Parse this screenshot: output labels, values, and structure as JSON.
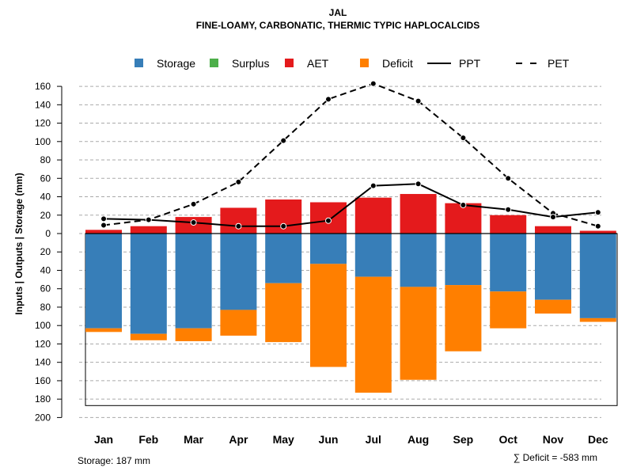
{
  "chart_data": {
    "type": "bar",
    "title": "JAL",
    "subtitle": "FINE-LOAMY, CARBONATIC, THERMIC TYPIC HAPLOCALCIDS",
    "ylabel": "Inputs | Outputs | Storage     (mm)",
    "ylim": [
      -200,
      170
    ],
    "yticks": [
      160,
      140,
      120,
      100,
      80,
      60,
      40,
      20,
      0,
      -20,
      -40,
      -60,
      -80,
      -100,
      -120,
      -140,
      -160,
      -180,
      -200
    ],
    "ytick_labels": [
      "160",
      "140",
      "120",
      "100",
      "80",
      "60",
      "40",
      "20",
      "0",
      "20",
      "40",
      "60",
      "80",
      "100",
      "120",
      "140",
      "160",
      "180",
      "200"
    ],
    "grid": true,
    "categories": [
      "Jan",
      "Feb",
      "Mar",
      "Apr",
      "May",
      "Jun",
      "Jul",
      "Aug",
      "Sep",
      "Oct",
      "Nov",
      "Dec"
    ],
    "legend": {
      "position": "top",
      "entries": [
        {
          "name": "Storage",
          "color": "#377EB8",
          "kind": "box"
        },
        {
          "name": "Surplus",
          "color": "#4DAF4A",
          "kind": "box"
        },
        {
          "name": "AET",
          "color": "#E41A1C",
          "kind": "box"
        },
        {
          "name": "Deficit",
          "color": "#FF7F00",
          "kind": "box"
        },
        {
          "name": "PPT",
          "color": "#000000",
          "kind": "solid"
        },
        {
          "name": "PET",
          "color": "#000000",
          "kind": "dashed"
        }
      ]
    },
    "series": [
      {
        "name": "AET",
        "values": [
          4,
          8,
          18,
          28,
          37,
          34,
          39,
          43,
          33,
          20,
          8,
          3
        ]
      },
      {
        "name": "Storage",
        "values": [
          103,
          109,
          103,
          83,
          54,
          33,
          47,
          58,
          56,
          63,
          72,
          92
        ]
      },
      {
        "name": "Deficit",
        "values": [
          4,
          7,
          14,
          28,
          64,
          112,
          126,
          101,
          72,
          40,
          15,
          4
        ]
      },
      {
        "name": "Surplus",
        "values": [
          0,
          0,
          0,
          0,
          0,
          0,
          0,
          0,
          0,
          0,
          0,
          0
        ]
      },
      {
        "name": "PPT",
        "values": [
          16,
          15,
          12,
          8,
          8,
          14,
          52,
          54,
          31,
          26,
          18,
          23
        ]
      },
      {
        "name": "PET",
        "values": [
          9,
          15,
          32,
          56,
          101,
          146,
          163,
          144,
          104,
          60,
          22,
          8
        ]
      }
    ],
    "storage_capacity": 187,
    "footer_left": "Storage: 187 mm",
    "footer_right": "∑ Deficit = -583 mm"
  }
}
